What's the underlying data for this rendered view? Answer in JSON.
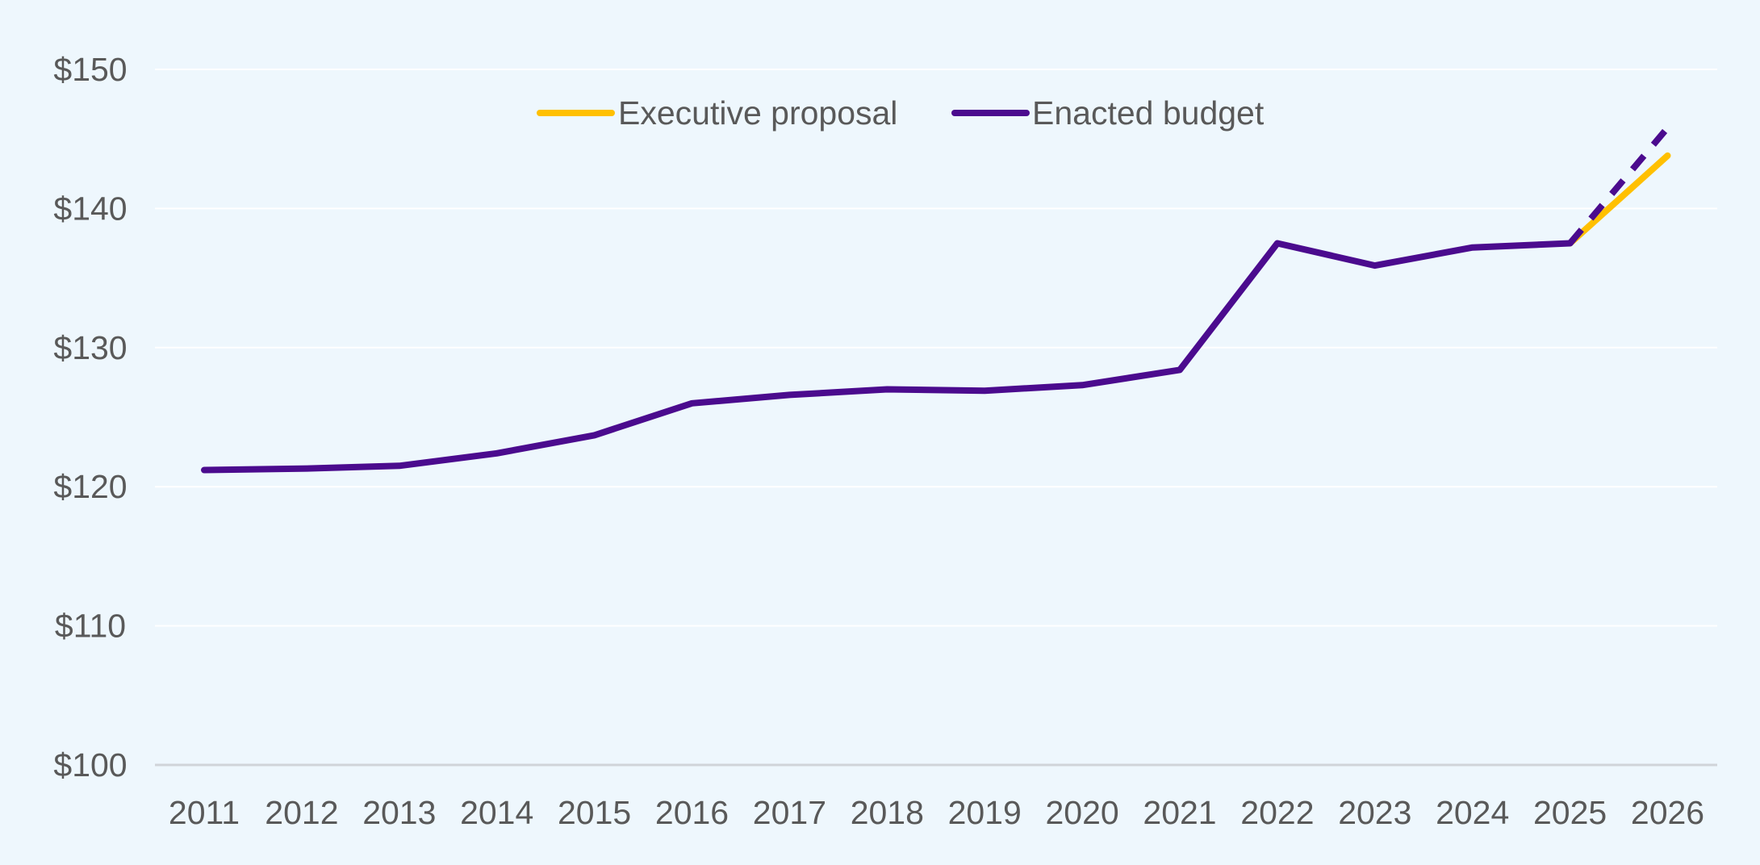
{
  "chart_data": {
    "type": "line",
    "title": "",
    "xlabel": "",
    "ylabel": "",
    "categories": [
      "2011",
      "2012",
      "2013",
      "2014",
      "2015",
      "2016",
      "2017",
      "2018",
      "2019",
      "2020",
      "2021",
      "2022",
      "2023",
      "2024",
      "2025",
      "2026"
    ],
    "ylim": [
      100,
      150
    ],
    "yticks": [
      100,
      110,
      120,
      130,
      140,
      150
    ],
    "ytick_labels": [
      "$100",
      "$110",
      "$120",
      "$130",
      "$140",
      "$150"
    ],
    "grid": true,
    "legend_position": "top-center",
    "series": [
      {
        "name": "Executive proposal",
        "color": "#ffc000",
        "style": "solid",
        "values": [
          null,
          null,
          null,
          null,
          null,
          null,
          null,
          null,
          null,
          null,
          null,
          null,
          null,
          null,
          137.5,
          143.8
        ]
      },
      {
        "name": "Enacted budget",
        "color": "#4b0b8e",
        "style": "solid-then-dashed",
        "dashed_from_index": 14,
        "values": [
          121.2,
          121.3,
          121.5,
          122.4,
          123.7,
          126.0,
          126.6,
          127.0,
          126.9,
          127.3,
          128.4,
          137.5,
          135.9,
          137.2,
          137.5,
          145.8
        ]
      }
    ]
  }
}
